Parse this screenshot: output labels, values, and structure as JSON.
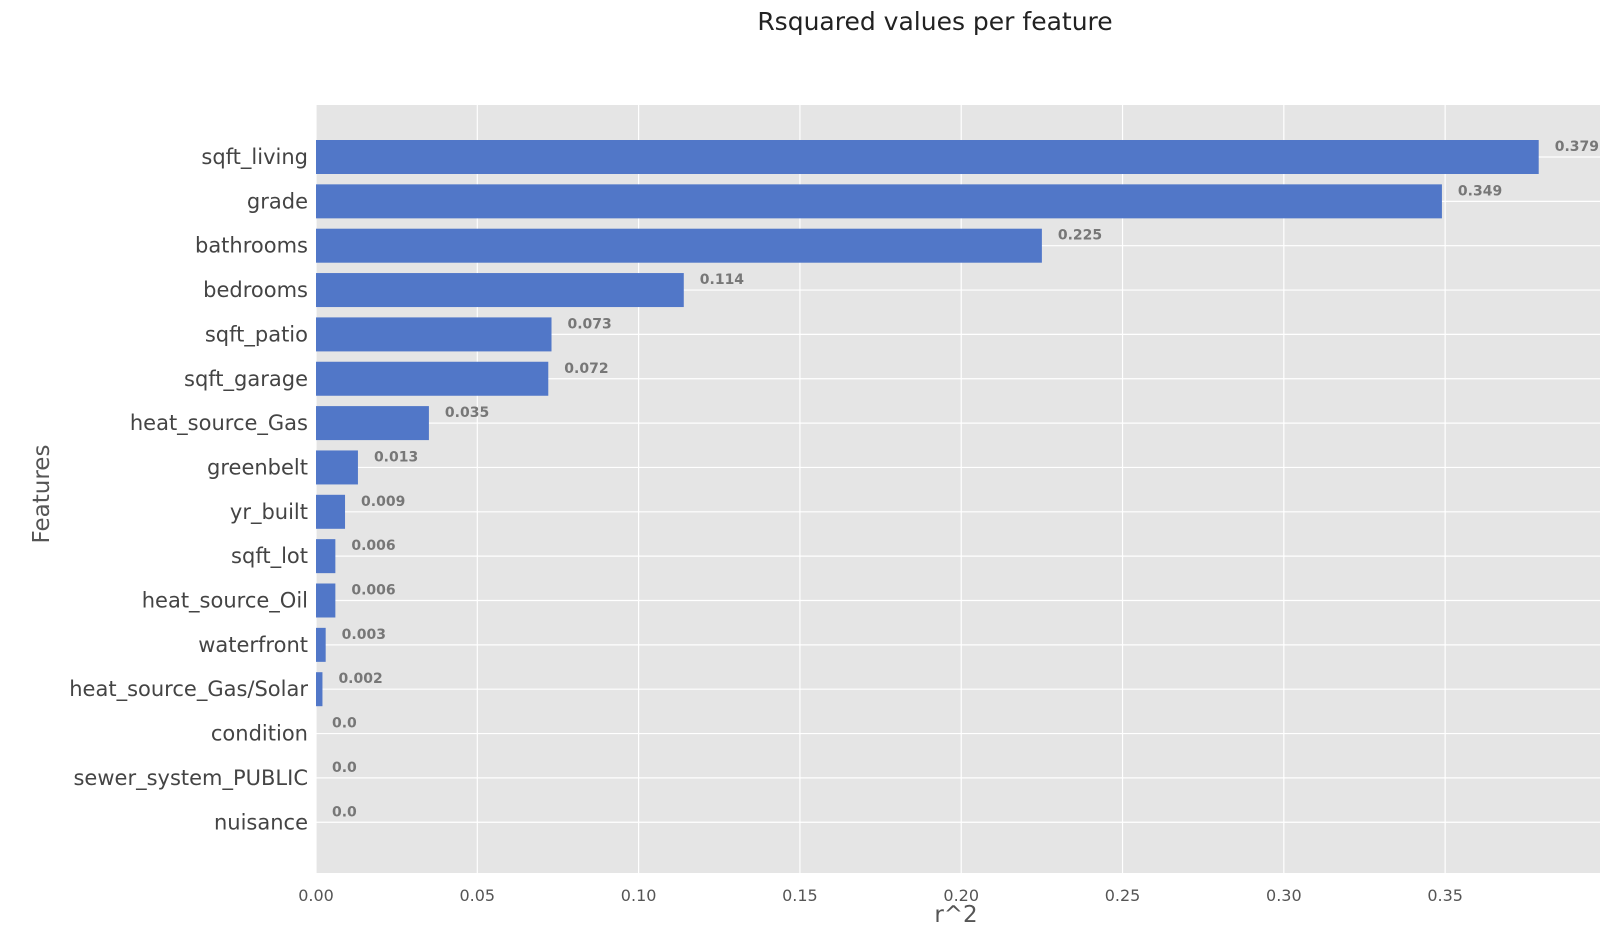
{
  "chart_data": {
    "type": "bar",
    "orientation": "horizontal",
    "title": "Rsquared values per feature",
    "xlabel": "r^2",
    "ylabel": "Features",
    "categories": [
      "sqft_living",
      "grade",
      "bathrooms",
      "bedrooms",
      "sqft_patio",
      "sqft_garage",
      "heat_source_Gas",
      "greenbelt",
      "yr_built",
      "sqft_lot",
      "heat_source_Oil",
      "waterfront",
      "heat_source_Gas/Solar",
      "condition",
      "sewer_system_PUBLIC",
      "nuisance"
    ],
    "values": [
      0.379,
      0.349,
      0.225,
      0.114,
      0.073,
      0.072,
      0.035,
      0.013,
      0.009,
      0.006,
      0.006,
      0.003,
      0.002,
      0.0,
      0.0,
      0.0
    ],
    "value_labels": [
      "0.379",
      "0.349",
      "0.225",
      "0.114",
      "0.073",
      "0.072",
      "0.035",
      "0.013",
      "0.009",
      "0.006",
      "0.006",
      "0.003",
      "0.002",
      "0.0",
      "0.0",
      "0.0"
    ],
    "xticks": [
      "0.00",
      "0.05",
      "0.10",
      "0.15",
      "0.20",
      "0.25",
      "0.30",
      "0.35"
    ],
    "xtick_values": [
      0,
      0.05,
      0.1,
      0.15,
      0.2,
      0.25,
      0.3,
      0.35
    ],
    "xlim": [
      0,
      0.398
    ],
    "grid": true,
    "colors": {
      "bar": "#5177c8",
      "plot_bg": "#e5e5e5",
      "grid": "#ffffff"
    }
  }
}
